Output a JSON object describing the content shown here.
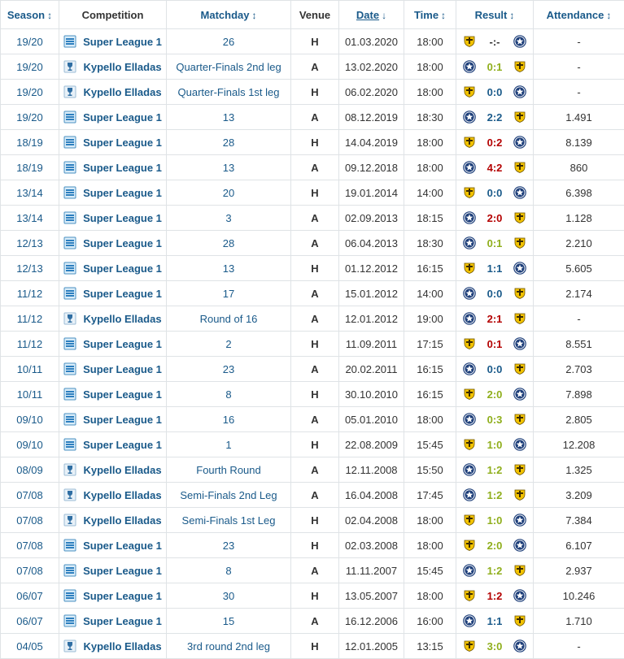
{
  "header": {
    "season": "Season",
    "competition": "Competition",
    "matchday": "Matchday",
    "venue": "Venue",
    "date": "Date",
    "time": "Time",
    "result": "Result",
    "attendance": "Attendance",
    "sort_icon": "↕",
    "sort_desc_icon": "↓"
  },
  "colors": {
    "link": "#1a5a8a",
    "win": "#8fae1b",
    "draw": "#1a5a8a",
    "loss": "#b40000",
    "crest_yellow": "#f2c200",
    "crest_navy": "#1e3f7a"
  },
  "rows": [
    {
      "season": "19/20",
      "competition": "Super League 1",
      "comp_icon": "super-league-logo-icon",
      "matchday": "26",
      "venue": "H",
      "date": "01.03.2020",
      "time": "18:00",
      "home_crest": "yellow-crest-icon",
      "score": "-:-",
      "outcome": "pending",
      "away_crest": "navy-star-crest-icon",
      "attendance": "-"
    },
    {
      "season": "19/20",
      "competition": "Kypello Elladas",
      "comp_icon": "greek-cup-logo-icon",
      "matchday": "Quarter-Finals 2nd leg",
      "venue": "A",
      "date": "13.02.2020",
      "time": "18:00",
      "home_crest": "navy-star-crest-icon",
      "score": "0:1",
      "outcome": "win",
      "away_crest": "yellow-crest-icon",
      "attendance": "-"
    },
    {
      "season": "19/20",
      "competition": "Kypello Elladas",
      "comp_icon": "greek-cup-logo-icon",
      "matchday": "Quarter-Finals 1st leg",
      "venue": "H",
      "date": "06.02.2020",
      "time": "18:00",
      "home_crest": "yellow-crest-icon",
      "score": "0:0",
      "outcome": "draw",
      "away_crest": "navy-star-crest-icon",
      "attendance": "-"
    },
    {
      "season": "19/20",
      "competition": "Super League 1",
      "comp_icon": "super-league-logo-icon",
      "matchday": "13",
      "venue": "A",
      "date": "08.12.2019",
      "time": "18:30",
      "home_crest": "navy-star-crest-icon",
      "score": "2:2",
      "outcome": "draw",
      "away_crest": "yellow-crest-icon",
      "attendance": "1.491"
    },
    {
      "season": "18/19",
      "competition": "Super League 1",
      "comp_icon": "super-league-logo-icon",
      "matchday": "28",
      "venue": "H",
      "date": "14.04.2019",
      "time": "18:00",
      "home_crest": "yellow-crest-icon",
      "score": "0:2",
      "outcome": "loss",
      "away_crest": "navy-star-crest-icon",
      "attendance": "8.139"
    },
    {
      "season": "18/19",
      "competition": "Super League 1",
      "comp_icon": "super-league-logo-icon",
      "matchday": "13",
      "venue": "A",
      "date": "09.12.2018",
      "time": "18:00",
      "home_crest": "navy-star-crest-icon",
      "score": "4:2",
      "outcome": "loss",
      "away_crest": "yellow-crest-icon",
      "attendance": "860"
    },
    {
      "season": "13/14",
      "competition": "Super League 1",
      "comp_icon": "super-league-logo-icon",
      "matchday": "20",
      "venue": "H",
      "date": "19.01.2014",
      "time": "14:00",
      "home_crest": "yellow-crest-icon",
      "score": "0:0",
      "outcome": "draw",
      "away_crest": "navy-star-crest-icon",
      "attendance": "6.398"
    },
    {
      "season": "13/14",
      "competition": "Super League 1",
      "comp_icon": "super-league-logo-icon",
      "matchday": "3",
      "venue": "A",
      "date": "02.09.2013",
      "time": "18:15",
      "home_crest": "navy-star-crest-icon",
      "score": "2:0",
      "outcome": "loss",
      "away_crest": "yellow-crest-icon",
      "attendance": "1.128"
    },
    {
      "season": "12/13",
      "competition": "Super League 1",
      "comp_icon": "super-league-logo-icon",
      "matchday": "28",
      "venue": "A",
      "date": "06.04.2013",
      "time": "18:30",
      "home_crest": "navy-star-crest-icon",
      "score": "0:1",
      "outcome": "win",
      "away_crest": "yellow-crest-icon",
      "attendance": "2.210"
    },
    {
      "season": "12/13",
      "competition": "Super League 1",
      "comp_icon": "super-league-logo-icon",
      "matchday": "13",
      "venue": "H",
      "date": "01.12.2012",
      "time": "16:15",
      "home_crest": "yellow-crest-icon",
      "score": "1:1",
      "outcome": "draw",
      "away_crest": "navy-star-crest-icon",
      "attendance": "5.605"
    },
    {
      "season": "11/12",
      "competition": "Super League 1",
      "comp_icon": "super-league-logo-icon",
      "matchday": "17",
      "venue": "A",
      "date": "15.01.2012",
      "time": "14:00",
      "home_crest": "navy-star-crest-icon",
      "score": "0:0",
      "outcome": "draw",
      "away_crest": "yellow-crest-icon",
      "attendance": "2.174"
    },
    {
      "season": "11/12",
      "competition": "Kypello Elladas",
      "comp_icon": "greek-cup-logo-icon",
      "matchday": "Round of 16",
      "venue": "A",
      "date": "12.01.2012",
      "time": "19:00",
      "home_crest": "navy-star-crest-icon",
      "score": "2:1",
      "outcome": "loss",
      "away_crest": "yellow-crest-icon",
      "attendance": "-"
    },
    {
      "season": "11/12",
      "competition": "Super League 1",
      "comp_icon": "super-league-logo-icon",
      "matchday": "2",
      "venue": "H",
      "date": "11.09.2011",
      "time": "17:15",
      "home_crest": "yellow-crest-icon",
      "score": "0:1",
      "outcome": "loss",
      "away_crest": "navy-star-crest-icon",
      "attendance": "8.551"
    },
    {
      "season": "10/11",
      "competition": "Super League 1",
      "comp_icon": "super-league-logo-icon",
      "matchday": "23",
      "venue": "A",
      "date": "20.02.2011",
      "time": "16:15",
      "home_crest": "navy-star-crest-icon",
      "score": "0:0",
      "outcome": "draw",
      "away_crest": "yellow-crest-icon",
      "attendance": "2.703"
    },
    {
      "season": "10/11",
      "competition": "Super League 1",
      "comp_icon": "super-league-logo-icon",
      "matchday": "8",
      "venue": "H",
      "date": "30.10.2010",
      "time": "16:15",
      "home_crest": "yellow-crest-icon",
      "score": "2:0",
      "outcome": "win",
      "away_crest": "navy-star-crest-icon",
      "attendance": "7.898"
    },
    {
      "season": "09/10",
      "competition": "Super League 1",
      "comp_icon": "super-league-logo-icon",
      "matchday": "16",
      "venue": "A",
      "date": "05.01.2010",
      "time": "18:00",
      "home_crest": "navy-star-crest-icon",
      "score": "0:3",
      "outcome": "win",
      "away_crest": "yellow-crest-icon",
      "attendance": "2.805"
    },
    {
      "season": "09/10",
      "competition": "Super League 1",
      "comp_icon": "super-league-logo-icon",
      "matchday": "1",
      "venue": "H",
      "date": "22.08.2009",
      "time": "15:45",
      "home_crest": "yellow-crest-icon",
      "score": "1:0",
      "outcome": "win",
      "away_crest": "navy-star-crest-icon",
      "attendance": "12.208"
    },
    {
      "season": "08/09",
      "competition": "Kypello Elladas",
      "comp_icon": "greek-cup-logo-icon",
      "matchday": "Fourth Round",
      "venue": "A",
      "date": "12.11.2008",
      "time": "15:50",
      "home_crest": "navy-star-crest-icon",
      "score": "1:2",
      "outcome": "win",
      "away_crest": "yellow-crest-icon",
      "attendance": "1.325"
    },
    {
      "season": "07/08",
      "competition": "Kypello Elladas",
      "comp_icon": "greek-cup-logo-icon",
      "matchday": "Semi-Finals 2nd Leg",
      "venue": "A",
      "date": "16.04.2008",
      "time": "17:45",
      "home_crest": "navy-star-crest-icon",
      "score": "1:2",
      "outcome": "win",
      "away_crest": "yellow-crest-icon",
      "attendance": "3.209"
    },
    {
      "season": "07/08",
      "competition": "Kypello Elladas",
      "comp_icon": "greek-cup-logo-icon",
      "matchday": "Semi-Finals 1st Leg",
      "venue": "H",
      "date": "02.04.2008",
      "time": "18:00",
      "home_crest": "yellow-crest-icon",
      "score": "1:0",
      "outcome": "win",
      "away_crest": "navy-star-crest-icon",
      "attendance": "7.384"
    },
    {
      "season": "07/08",
      "competition": "Super League 1",
      "comp_icon": "super-league-logo-icon",
      "matchday": "23",
      "venue": "H",
      "date": "02.03.2008",
      "time": "18:00",
      "home_crest": "yellow-crest-icon",
      "score": "2:0",
      "outcome": "win",
      "away_crest": "navy-star-crest-icon",
      "attendance": "6.107"
    },
    {
      "season": "07/08",
      "competition": "Super League 1",
      "comp_icon": "super-league-logo-icon",
      "matchday": "8",
      "venue": "A",
      "date": "11.11.2007",
      "time": "15:45",
      "home_crest": "navy-star-crest-icon",
      "score": "1:2",
      "outcome": "win",
      "away_crest": "yellow-crest-icon",
      "attendance": "2.937"
    },
    {
      "season": "06/07",
      "competition": "Super League 1",
      "comp_icon": "super-league-logo-icon",
      "matchday": "30",
      "venue": "H",
      "date": "13.05.2007",
      "time": "18:00",
      "home_crest": "yellow-crest-icon",
      "score": "1:2",
      "outcome": "loss",
      "away_crest": "navy-star-crest-icon",
      "attendance": "10.246"
    },
    {
      "season": "06/07",
      "competition": "Super League 1",
      "comp_icon": "super-league-logo-icon",
      "matchday": "15",
      "venue": "A",
      "date": "16.12.2006",
      "time": "16:00",
      "home_crest": "navy-star-crest-icon",
      "score": "1:1",
      "outcome": "draw",
      "away_crest": "yellow-crest-icon",
      "attendance": "1.710"
    },
    {
      "season": "04/05",
      "competition": "Kypello Elladas",
      "comp_icon": "greek-cup-logo-icon",
      "matchday": "3rd round 2nd leg",
      "venue": "H",
      "date": "12.01.2005",
      "time": "13:15",
      "home_crest": "yellow-crest-icon",
      "score": "3:0",
      "outcome": "win",
      "away_crest": "navy-star-crest-icon",
      "attendance": "-"
    }
  ]
}
